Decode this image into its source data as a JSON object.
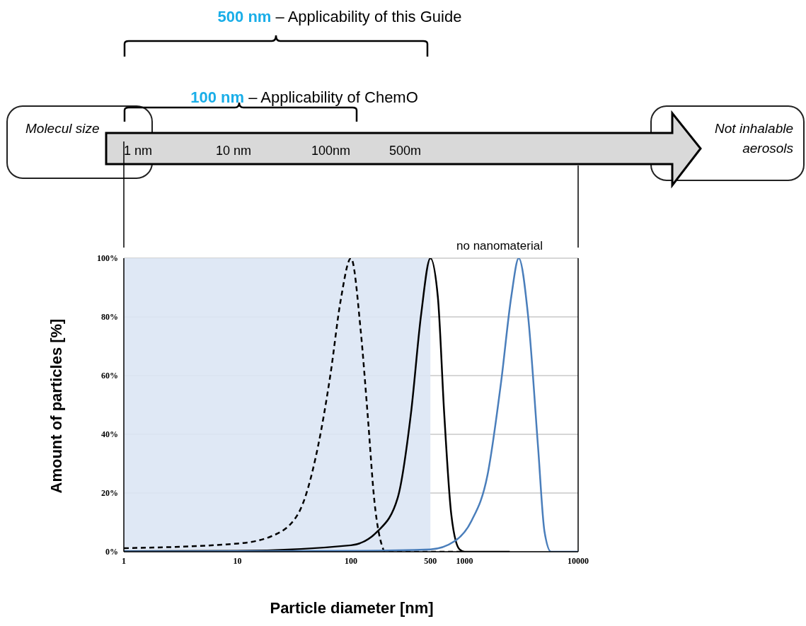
{
  "chart_data": {
    "type": "line",
    "xlabel": "Particle diameter [nm]",
    "ylabel": "Amount of particles [%]",
    "annotations": [
      "500 nm – Applicability of this Guide",
      "100 nm – Applicability of ChemO",
      "Molecul size",
      "Not inhalable aerosols",
      "1 nm",
      "10 nm",
      "100nm",
      "500m",
      "no nanomaterial"
    ],
    "log": "x",
    "xlim": [
      1,
      10000
    ],
    "xticks": [
      1,
      10,
      100,
      500,
      1000,
      10000
    ],
    "ylim": [
      0,
      100
    ],
    "yticks": [
      {
        "value": 0,
        "label": "0%"
      },
      {
        "value": 20,
        "label": "20%"
      },
      {
        "value": 40,
        "label": "40%"
      },
      {
        "value": 60,
        "label": "60%"
      },
      {
        "value": 80,
        "label": "80%"
      },
      {
        "value": 100,
        "label": "100%"
      }
    ],
    "grid": "y",
    "marker": "none",
    "bands": [
      {
        "axis": "x",
        "from": 1,
        "to": 500,
        "color": "#dce6f4"
      }
    ],
    "series": [
      {
        "color": "#000000",
        "line_style": "dashed",
        "x": [
          1,
          10,
          20,
          34,
          51,
          66,
          81,
          100,
          122,
          140,
          161,
          190,
          197,
          1000
        ],
        "values": [
          1.2,
          2.8,
          5.3,
          12.7,
          35.5,
          60.5,
          85.5,
          100,
          75,
          47,
          17,
          1.4,
          0,
          0
        ]
      },
      {
        "color": "#000000",
        "line_style": "solid",
        "x": [
          1,
          10,
          100,
          172,
          258,
          337,
          415,
          500,
          582,
          662,
          764,
          903,
          1000,
          2500
        ],
        "values": [
          0.2,
          0.3,
          2.2,
          7,
          18.4,
          47,
          81,
          100,
          86.7,
          47,
          12.7,
          0.8,
          0,
          0
        ]
      },
      {
        "color": "#4a7ebb",
        "line_style": "solid",
        "x": [
          1,
          100,
          500,
          818,
          1150,
          1590,
          2100,
          2580,
          3000,
          3610,
          4440,
          5050,
          5780,
          10000
        ],
        "values": [
          0.1,
          0.3,
          0.8,
          3.6,
          10.5,
          26,
          58,
          87,
          100,
          81,
          35.5,
          7,
          0,
          0
        ]
      }
    ]
  }
}
